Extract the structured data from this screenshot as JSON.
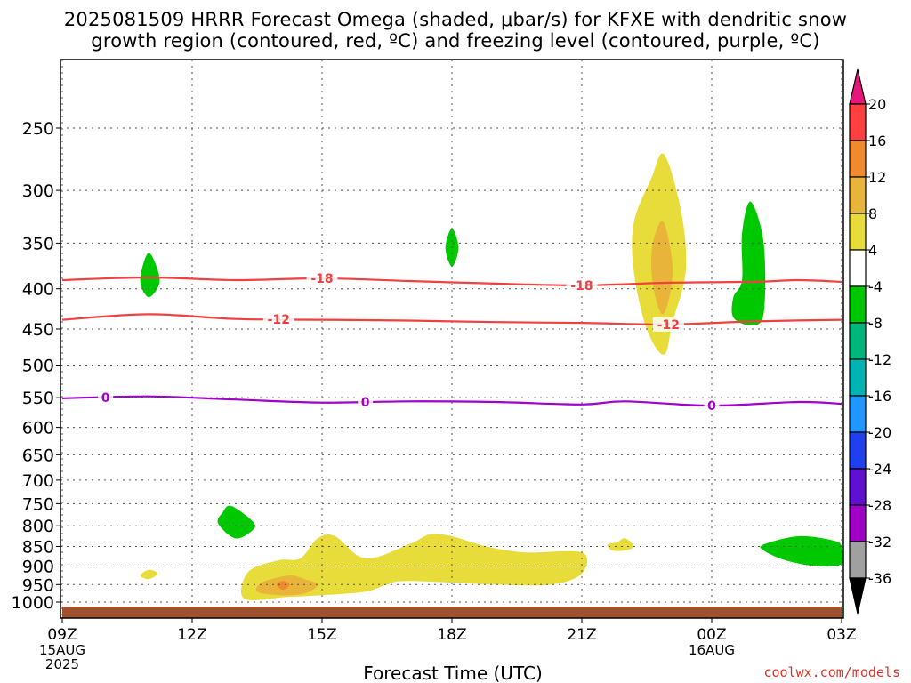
{
  "title": {
    "line1": "2025081509 HRRR Forecast Omega (shaded, μbar/s) for KFXE with dendritic snow",
    "line2": "growth region (contoured, red, ºC) and freezing level (contoured, purple, ºC)"
  },
  "watermark": "coolwx.com/models",
  "chart_data": {
    "type": "heatmap",
    "xlabel": "Forecast Time (UTC)",
    "x_ticks": [
      {
        "hour": 0,
        "label": "09Z",
        "sub": [
          "15AUG",
          "2025"
        ]
      },
      {
        "hour": 3,
        "label": "12Z",
        "sub": []
      },
      {
        "hour": 6,
        "label": "15Z",
        "sub": []
      },
      {
        "hour": 9,
        "label": "18Z",
        "sub": []
      },
      {
        "hour": 12,
        "label": "21Z",
        "sub": []
      },
      {
        "hour": 15,
        "label": "00Z",
        "sub": [
          "16AUG"
        ]
      },
      {
        "hour": 18,
        "label": "03Z",
        "sub": []
      }
    ],
    "xlim": [
      0,
      18
    ],
    "ylabel": "",
    "y_axis": "pressure (mb), log scale, inverted",
    "ylim": [
      1025,
      200
    ],
    "y_ticks": [
      250,
      300,
      350,
      400,
      450,
      500,
      550,
      600,
      650,
      700,
      750,
      800,
      850,
      900,
      950,
      1000
    ],
    "grid": true,
    "colorbar": {
      "labels": [
        "20",
        "16",
        "12",
        "8",
        "4",
        "-4",
        "-8",
        "-12",
        "-16",
        "-20",
        "-24",
        "-28",
        "-32",
        "-36"
      ],
      "colors": [
        "#e8157d",
        "#ff4040",
        "#f08a2c",
        "#e8b43a",
        "#e8dc3a",
        "#ffffff",
        "#00c800",
        "#00b67a",
        "#00b4b4",
        "#2096ff",
        "#2040f0",
        "#6010d0",
        "#a000c8",
        "#a0a0a0",
        "#000000"
      ]
    },
    "omega_regions": [
      {
        "color": "#e8dc3a",
        "value": "4 to 8",
        "points": [
          [
            13.9,
            270
          ],
          [
            14.3,
            320
          ],
          [
            14.4,
            380
          ],
          [
            14.1,
            440
          ],
          [
            13.9,
            485
          ],
          [
            13.5,
            450
          ],
          [
            13.2,
            380
          ],
          [
            13.2,
            330
          ],
          [
            13.6,
            290
          ]
        ]
      },
      {
        "color": "#e8b43a",
        "value": "8 to 12",
        "points": [
          [
            13.9,
            330
          ],
          [
            14.1,
            380
          ],
          [
            13.9,
            430
          ],
          [
            13.7,
            410
          ],
          [
            13.6,
            370
          ],
          [
            13.7,
            340
          ]
        ]
      },
      {
        "color": "#00c800",
        "value": "-4 to -8",
        "points": [
          [
            2.0,
            360
          ],
          [
            2.25,
            390
          ],
          [
            2.0,
            410
          ],
          [
            1.8,
            390
          ]
        ]
      },
      {
        "color": "#00c800",
        "value": "-4 to -8",
        "points": [
          [
            9.0,
            335
          ],
          [
            9.15,
            355
          ],
          [
            9.0,
            375
          ],
          [
            8.85,
            355
          ]
        ]
      },
      {
        "color": "#00c800",
        "value": "-4 to -8",
        "points": [
          [
            15.9,
            310
          ],
          [
            16.2,
            350
          ],
          [
            16.2,
            430
          ],
          [
            15.9,
            445
          ],
          [
            15.5,
            435
          ],
          [
            15.5,
            410
          ],
          [
            15.7,
            390
          ],
          [
            15.7,
            340
          ]
        ]
      },
      {
        "color": "#00c800",
        "value": "-4 to -8",
        "points": [
          [
            3.9,
            755
          ],
          [
            4.4,
            790
          ],
          [
            4.4,
            810
          ],
          [
            4.0,
            830
          ],
          [
            3.6,
            795
          ],
          [
            3.7,
            770
          ]
        ]
      },
      {
        "color": "#00c800",
        "value": "-4 to -8",
        "points": [
          [
            16.2,
            845
          ],
          [
            17.0,
            825
          ],
          [
            17.8,
            835
          ],
          [
            18.0,
            850
          ],
          [
            18.0,
            895
          ],
          [
            17.4,
            900
          ],
          [
            16.7,
            885
          ],
          [
            16.2,
            860
          ]
        ]
      },
      {
        "color": "#e8dc3a",
        "value": "4 to 8",
        "points": [
          [
            5.9,
            830
          ],
          [
            6.3,
            825
          ],
          [
            7.0,
            880
          ],
          [
            8.0,
            845
          ],
          [
            8.5,
            820
          ],
          [
            9.0,
            825
          ],
          [
            9.8,
            850
          ],
          [
            10.7,
            865
          ],
          [
            12.0,
            865
          ],
          [
            12.0,
            920
          ],
          [
            11.3,
            950
          ],
          [
            10.0,
            950
          ],
          [
            8.0,
            940
          ],
          [
            7.5,
            950
          ],
          [
            7.0,
            970
          ],
          [
            6.0,
            980
          ],
          [
            5.2,
            985
          ],
          [
            4.2,
            990
          ],
          [
            4.3,
            915
          ],
          [
            5.0,
            885
          ],
          [
            5.5,
            880
          ]
        ]
      },
      {
        "color": "#e8dc3a",
        "value": "4 to 8",
        "points": [
          [
            2.0,
            910
          ],
          [
            2.2,
            920
          ],
          [
            2.0,
            935
          ],
          [
            1.8,
            925
          ]
        ]
      },
      {
        "color": "#e8dc3a",
        "value": "4 to 8",
        "points": [
          [
            13.0,
            830
          ],
          [
            13.2,
            850
          ],
          [
            13.0,
            860
          ],
          [
            12.7,
            860
          ],
          [
            12.6,
            845
          ],
          [
            12.8,
            840
          ]
        ]
      },
      {
        "color": "#e8b43a",
        "value": "8 to 12",
        "points": [
          [
            5.3,
            925
          ],
          [
            5.6,
            935
          ],
          [
            5.9,
            950
          ],
          [
            5.6,
            975
          ],
          [
            5.0,
            980
          ],
          [
            4.5,
            970
          ],
          [
            4.6,
            945
          ],
          [
            5.0,
            930
          ]
        ]
      },
      {
        "color": "#f08a2c",
        "value": "12 to 16",
        "points": [
          [
            5.1,
            940
          ],
          [
            5.25,
            950
          ],
          [
            5.1,
            965
          ],
          [
            4.95,
            950
          ]
        ]
      }
    ],
    "contours": [
      {
        "name": "-18",
        "color": "#f04040",
        "label_x": [
          6.0,
          12.0
        ],
        "points": [
          [
            0,
            390
          ],
          [
            2,
            387
          ],
          [
            4,
            390
          ],
          [
            6,
            388
          ],
          [
            8,
            391
          ],
          [
            10,
            394
          ],
          [
            12,
            396
          ],
          [
            14,
            393
          ],
          [
            16,
            392
          ],
          [
            17,
            390
          ],
          [
            18,
            392
          ]
        ]
      },
      {
        "name": "-12",
        "color": "#f04040",
        "label_x": [
          5.0,
          14.0
        ],
        "points": [
          [
            0,
            438
          ],
          [
            2,
            431
          ],
          [
            4,
            437
          ],
          [
            6,
            438
          ],
          [
            8,
            439
          ],
          [
            10,
            441
          ],
          [
            12,
            442
          ],
          [
            14,
            444
          ],
          [
            16,
            440
          ],
          [
            18,
            438
          ]
        ]
      },
      {
        "name": "0",
        "color": "#a000c8",
        "label_x": [
          1.0,
          7.0,
          15.0
        ],
        "points": [
          [
            0,
            551
          ],
          [
            2,
            548
          ],
          [
            4,
            553
          ],
          [
            6,
            558
          ],
          [
            8,
            556
          ],
          [
            10,
            557
          ],
          [
            12,
            561
          ],
          [
            13,
            556
          ],
          [
            15,
            563
          ],
          [
            17,
            557
          ],
          [
            18,
            560
          ]
        ]
      }
    ],
    "terrain_color": "#a0522d"
  }
}
